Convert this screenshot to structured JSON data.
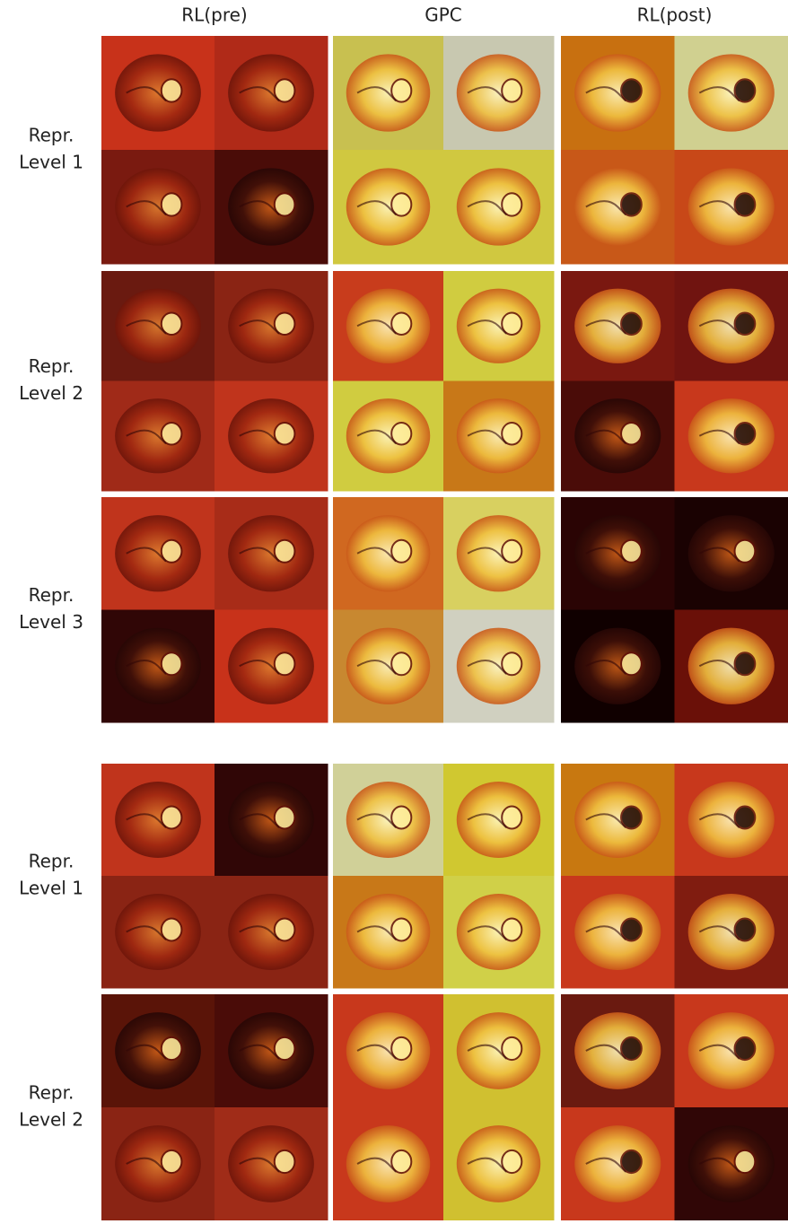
{
  "column_headers": [
    "RL(pre)",
    "GPC",
    "RL(post)"
  ],
  "groups": [
    {
      "rows": [
        {
          "label_lines": [
            "Repr.",
            "Level 1"
          ]
        },
        {
          "label_lines": [
            "Repr.",
            "Level 2"
          ]
        },
        {
          "label_lines": [
            "Repr.",
            "Level 3"
          ]
        }
      ]
    },
    {
      "rows": [
        {
          "label_lines": [
            "Repr.",
            "Level 1"
          ]
        },
        {
          "label_lines": [
            "Repr.",
            "Level 2"
          ]
        }
      ]
    }
  ]
}
